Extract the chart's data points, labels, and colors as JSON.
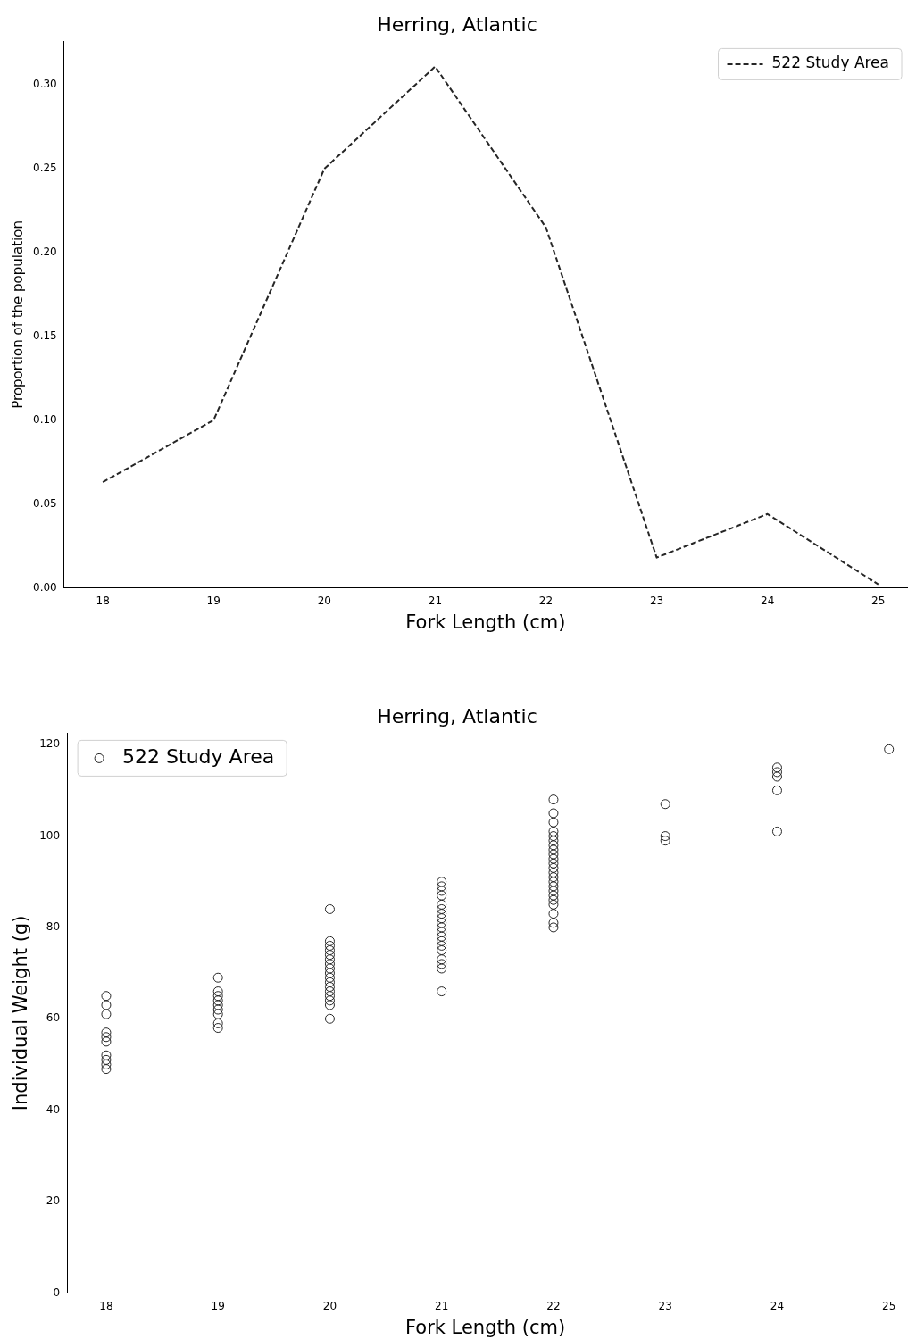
{
  "chart_data": [
    {
      "type": "line",
      "title": "Herring, Atlantic",
      "xlabel": "Fork Length (cm)",
      "ylabel": "Proportion of the population",
      "x": [
        18,
        19,
        20,
        21,
        22,
        23,
        24,
        25
      ],
      "series": [
        {
          "name": "522 Study Area",
          "color": "#262626",
          "values": [
            0.063,
            0.1,
            0.25,
            0.311,
            0.215,
            0.018,
            0.044,
            0.002
          ]
        }
      ],
      "xlim": [
        17.65,
        25.26
      ],
      "xticks": [
        18,
        19,
        20,
        21,
        22,
        23,
        24,
        25
      ],
      "ylim": [
        0,
        0.326
      ],
      "yticks": [
        {
          "value": 0,
          "label": "0.00"
        },
        {
          "value": 0.05,
          "label": "0.05"
        },
        {
          "value": 0.1,
          "label": "0.10"
        },
        {
          "value": 0.15,
          "label": "0.15"
        },
        {
          "value": 0.2,
          "label": "0.20"
        },
        {
          "value": 0.25,
          "label": "0.25"
        },
        {
          "value": 0.3,
          "label": "0.30"
        }
      ],
      "legend": "top right",
      "line_style": "dashed",
      "marker": "none",
      "grid": false
    },
    {
      "type": "scatter",
      "title": "Herring, Atlantic",
      "xlabel": "Fork Length (cm)",
      "ylabel": "Individual Weight (g)",
      "series": [
        {
          "name": "522 Study Area",
          "color": "#262626",
          "x": [
            18,
            18,
            18,
            18,
            18,
            18,
            18,
            18,
            18,
            18,
            19,
            19,
            19,
            19,
            19,
            19,
            19,
            19,
            19,
            20,
            20,
            20,
            20,
            20,
            20,
            20,
            20,
            20,
            20,
            20,
            20,
            20,
            20,
            20,
            20,
            20,
            21,
            21,
            21,
            21,
            21,
            21,
            21,
            21,
            21,
            21,
            21,
            21,
            21,
            21,
            21,
            21,
            21,
            21,
            21,
            22,
            22,
            22,
            22,
            22,
            22,
            22,
            22,
            22,
            22,
            22,
            22,
            22,
            22,
            22,
            22,
            22,
            22,
            22,
            22,
            22,
            22,
            22,
            23,
            23,
            23,
            24,
            24,
            24,
            24,
            24,
            25
          ],
          "values": [
            65,
            63,
            61,
            57,
            56,
            55,
            52,
            51,
            50,
            49,
            69,
            66,
            65,
            64,
            63,
            62,
            61,
            59,
            58,
            84,
            77,
            76,
            75,
            74,
            73,
            72,
            71,
            70,
            69,
            68,
            67,
            66,
            65,
            64,
            63,
            60,
            90,
            89,
            88,
            87,
            85,
            84,
            83,
            82,
            81,
            80,
            79,
            78,
            77,
            76,
            75,
            73,
            72,
            71,
            66,
            108,
            105,
            103,
            101,
            100,
            99,
            98,
            97,
            96,
            95,
            94,
            93,
            92,
            91,
            90,
            89,
            88,
            87,
            86,
            85,
            83,
            81,
            80,
            107,
            100,
            99,
            115,
            114,
            113,
            110,
            101,
            119
          ]
        }
      ],
      "xlim": [
        17.65,
        25.13
      ],
      "xticks": [
        18,
        19,
        20,
        21,
        22,
        23,
        24,
        25
      ],
      "ylim": [
        0,
        122.5
      ],
      "yticks": [
        0,
        20,
        40,
        60,
        80,
        100,
        120
      ],
      "legend": "top left",
      "marker": "circle",
      "grid": false
    }
  ]
}
